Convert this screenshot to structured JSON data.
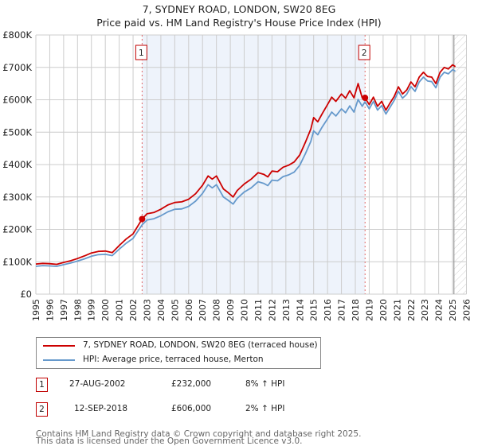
{
  "title": "7, SYDNEY ROAD, LONDON, SW20 8EG",
  "subtitle": "Price paid vs. HM Land Registry's House Price Index (HPI)",
  "colors": {
    "property": "#cc0000",
    "hpi": "#6699cc",
    "grid": "#cccccc",
    "shade": "#eef3fb",
    "marker_line": "#e06666"
  },
  "chart_data": {
    "type": "line",
    "title": "7, SYDNEY ROAD, LONDON, SW20 8EG",
    "subtitle": "Price paid vs. HM Land Registry's House Price Index (HPI)",
    "xlabel": "",
    "ylabel": "",
    "xlim": [
      1995,
      2026
    ],
    "ylim": [
      0,
      800000
    ],
    "grid": true,
    "x_ticks": [
      "1995",
      "1996",
      "1997",
      "1998",
      "1999",
      "2000",
      "2001",
      "2002",
      "2003",
      "2004",
      "2005",
      "2006",
      "2007",
      "2008",
      "2009",
      "2010",
      "2011",
      "2012",
      "2013",
      "2014",
      "2015",
      "2016",
      "2017",
      "2018",
      "2019",
      "2020",
      "2021",
      "2022",
      "2023",
      "2024",
      "2025",
      "2026"
    ],
    "y_ticks": [
      {
        "value": 0,
        "label": "£0"
      },
      {
        "value": 100000,
        "label": "£100K"
      },
      {
        "value": 200000,
        "label": "£200K"
      },
      {
        "value": 300000,
        "label": "£300K"
      },
      {
        "value": 400000,
        "label": "£400K"
      },
      {
        "value": 500000,
        "label": "£500K"
      },
      {
        "value": 600000,
        "label": "£600K"
      },
      {
        "value": 700000,
        "label": "£700K"
      },
      {
        "value": 800000,
        "label": "£800K"
      }
    ],
    "shaded_region": [
      2002.65,
      2018.7
    ],
    "hatched_from": 2025.1,
    "series": [
      {
        "name": "7, SYDNEY ROAD, LONDON, SW20 8EG (terraced house)",
        "color": "#cc0000",
        "x": [
          1995.0,
          1995.5,
          1996.0,
          1996.5,
          1997.0,
          1997.5,
          1998.0,
          1998.5,
          1999.0,
          1999.5,
          2000.0,
          2000.5,
          2001.0,
          2001.5,
          2002.0,
          2002.65,
          2003.0,
          2003.5,
          2004.0,
          2004.5,
          2005.0,
          2005.5,
          2006.0,
          2006.5,
          2007.0,
          2007.4,
          2007.7,
          2008.0,
          2008.5,
          2008.8,
          2009.2,
          2009.5,
          2010.0,
          2010.5,
          2011.0,
          2011.4,
          2011.7,
          2012.0,
          2012.4,
          2012.8,
          2013.2,
          2013.6,
          2014.0,
          2014.4,
          2014.8,
          2015.0,
          2015.3,
          2015.6,
          2016.0,
          2016.3,
          2016.6,
          2017.0,
          2017.3,
          2017.6,
          2017.9,
          2018.2,
          2018.5,
          2018.7,
          2019.0,
          2019.3,
          2019.6,
          2019.9,
          2020.2,
          2020.5,
          2020.8,
          2021.1,
          2021.4,
          2021.7,
          2022.0,
          2022.3,
          2022.6,
          2022.9,
          2023.2,
          2023.5,
          2023.8,
          2024.1,
          2024.4,
          2024.7,
          2025.0,
          2025.2
        ],
        "y": [
          93000,
          95000,
          94000,
          92000,
          98000,
          103000,
          110000,
          118000,
          127000,
          132000,
          133000,
          128000,
          150000,
          170000,
          186000,
          232000,
          248000,
          252000,
          262000,
          275000,
          283000,
          285000,
          293000,
          310000,
          336000,
          365000,
          355000,
          365000,
          325000,
          315000,
          300000,
          320000,
          340000,
          355000,
          375000,
          370000,
          362000,
          380000,
          378000,
          392000,
          398000,
          408000,
          430000,
          468000,
          510000,
          545000,
          532000,
          556000,
          585000,
          608000,
          595000,
          618000,
          605000,
          628000,
          606000,
          650000,
          606000,
          606000,
          585000,
          608000,
          580000,
          595000,
          568000,
          590000,
          610000,
          640000,
          618000,
          630000,
          655000,
          640000,
          670000,
          685000,
          672000,
          670000,
          650000,
          685000,
          700000,
          695000,
          708000,
          702000
        ]
      },
      {
        "name": "HPI: Average price, terraced house, Merton",
        "color": "#6699cc",
        "x": [
          1995.0,
          1995.5,
          1996.0,
          1996.5,
          1997.0,
          1997.5,
          1998.0,
          1998.5,
          1999.0,
          1999.5,
          2000.0,
          2000.5,
          2001.0,
          2001.5,
          2002.0,
          2002.65,
          2003.0,
          2003.5,
          2004.0,
          2004.5,
          2005.0,
          2005.5,
          2006.0,
          2006.5,
          2007.0,
          2007.4,
          2007.7,
          2008.0,
          2008.5,
          2008.8,
          2009.2,
          2009.5,
          2010.0,
          2010.5,
          2011.0,
          2011.4,
          2011.7,
          2012.0,
          2012.4,
          2012.8,
          2013.2,
          2013.6,
          2014.0,
          2014.4,
          2014.8,
          2015.0,
          2015.3,
          2015.6,
          2016.0,
          2016.3,
          2016.6,
          2017.0,
          2017.3,
          2017.6,
          2017.9,
          2018.2,
          2018.5,
          2018.7,
          2019.0,
          2019.3,
          2019.6,
          2019.9,
          2020.2,
          2020.5,
          2020.8,
          2021.1,
          2021.4,
          2021.7,
          2022.0,
          2022.3,
          2022.6,
          2022.9,
          2023.2,
          2023.5,
          2023.8,
          2024.1,
          2024.4,
          2024.7,
          2025.0,
          2025.2
        ],
        "y": [
          86000,
          88000,
          87000,
          86000,
          91000,
          96000,
          102000,
          109000,
          117000,
          122000,
          123000,
          119000,
          139000,
          157000,
          172000,
          214000,
          229000,
          233000,
          242000,
          254000,
          262000,
          263000,
          271000,
          287000,
          311000,
          338000,
          328000,
          338000,
          300000,
          291000,
          278000,
          296000,
          315000,
          328000,
          347000,
          342000,
          335000,
          352000,
          350000,
          363000,
          368000,
          377000,
          398000,
          433000,
          472000,
          504000,
          492000,
          515000,
          541000,
          562000,
          550000,
          572000,
          560000,
          581000,
          562000,
          601000,
          580000,
          594000,
          572000,
          595000,
          568000,
          582000,
          556000,
          577000,
          598000,
          626000,
          605000,
          617000,
          641000,
          626000,
          655000,
          670000,
          658000,
          656000,
          637000,
          670000,
          685000,
          680000,
          693000,
          688000
        ]
      }
    ],
    "sales": [
      {
        "label": "1",
        "x": 2002.65,
        "value": 232000
      },
      {
        "label": "2",
        "x": 2018.7,
        "value": 606000
      }
    ]
  },
  "legend": {
    "items": [
      {
        "label": "7, SYDNEY ROAD, LONDON, SW20 8EG (terraced house)",
        "color": "#cc0000"
      },
      {
        "label": "HPI: Average price, terraced house, Merton",
        "color": "#6699cc"
      }
    ]
  },
  "sales_table": [
    {
      "num": "1",
      "date": "27-AUG-2002",
      "price": "£232,000",
      "hpi": "8% ↑ HPI"
    },
    {
      "num": "2",
      "date": "12-SEP-2018",
      "price": "£606,000",
      "hpi": "2% ↑ HPI"
    }
  ],
  "footer": {
    "line1": "Contains HM Land Registry data © Crown copyright and database right 2025.",
    "line2": "This data is licensed under the Open Government Licence v3.0."
  }
}
